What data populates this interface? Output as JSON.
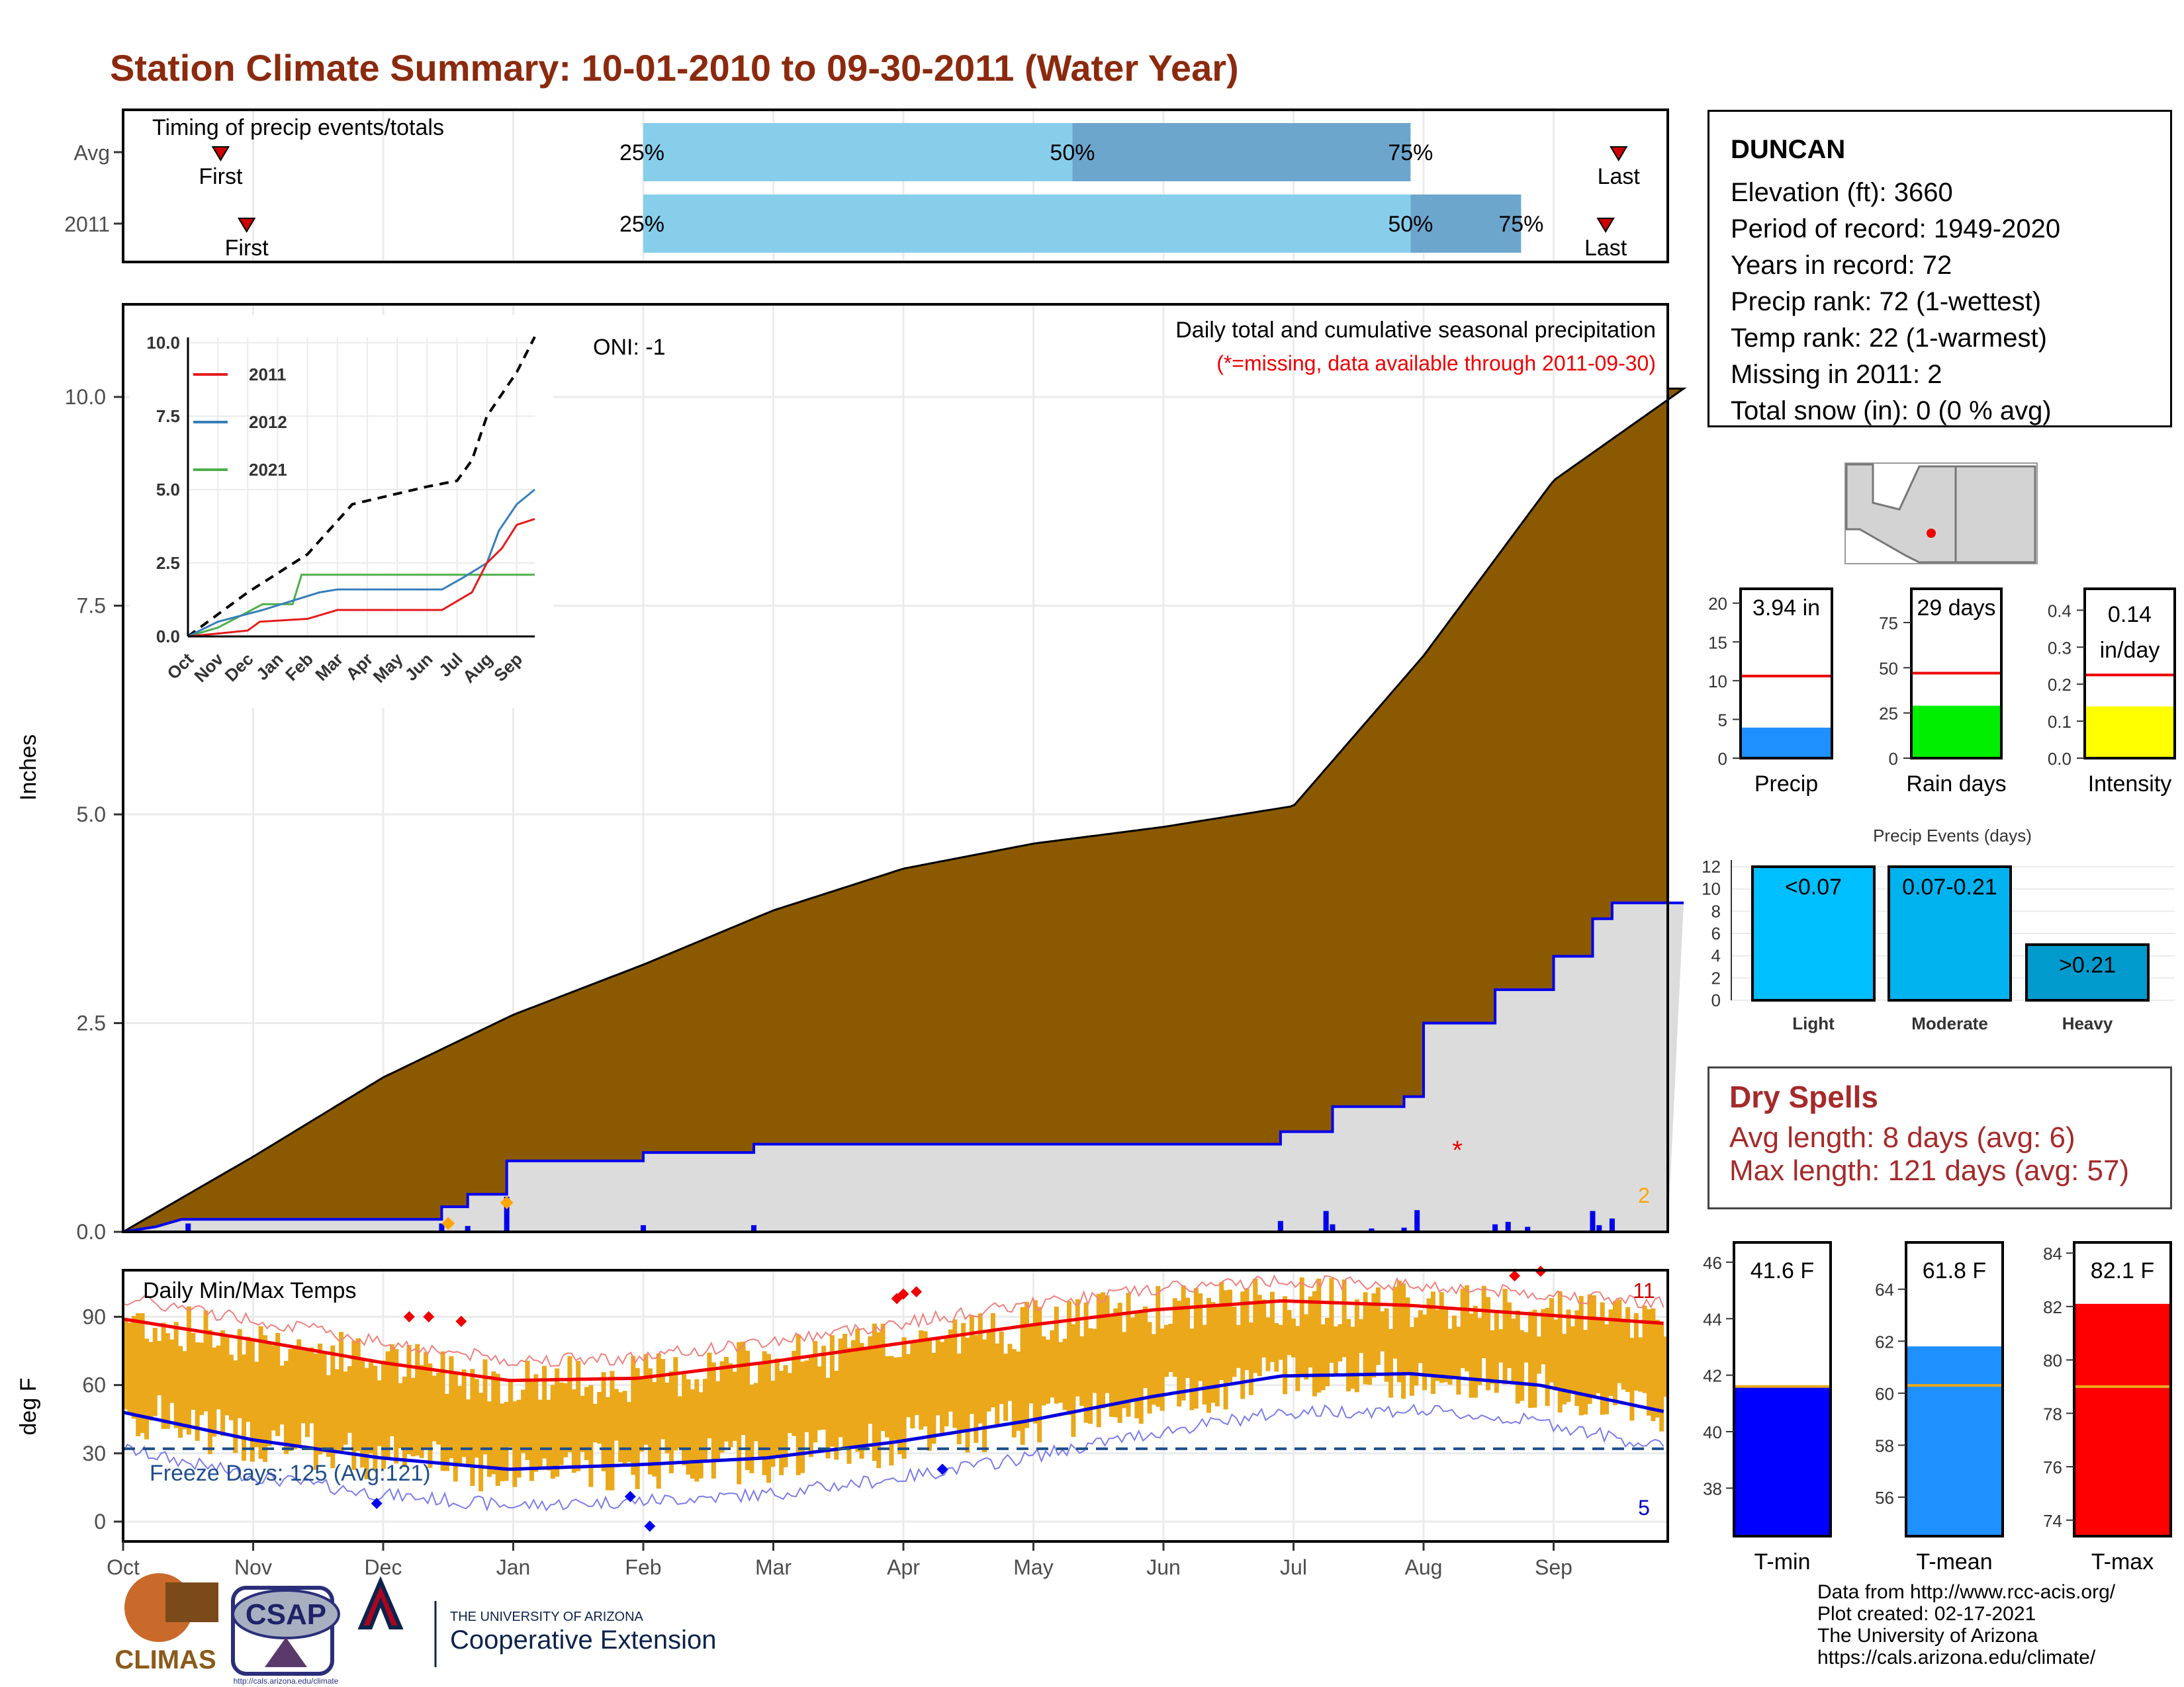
{
  "title": "Station Climate Summary: 10-01-2010 to 09-30-2011 (Water Year)",
  "timing_panel": {
    "title": "Timing of precip events/totals",
    "rows": [
      {
        "label": "Avg",
        "first_label": "First",
        "last_label": "Last",
        "first_month": 0.75,
        "last_month": 11.5,
        "p25": 4.0,
        "p50": 7.3,
        "p75": 9.9,
        "p25_label": "25%",
        "p50_label": "50%",
        "p75_label": "75%"
      },
      {
        "label": "2011",
        "first_label": "First",
        "last_label": "Last",
        "first_month": 0.95,
        "last_month": 11.4,
        "p25": 4.0,
        "p50": 9.9,
        "p75": 10.75,
        "p25_label": "25%",
        "p50_label": "50%",
        "p75_label": "75%"
      }
    ],
    "colors": {
      "light": "#87CEEB",
      "dark": "#6CA6CD",
      "marker": "#CC0000"
    }
  },
  "precip_panel": {
    "ylabel": "Inches",
    "yticks": [
      "0.0",
      "2.5",
      "5.0",
      "7.5",
      "10.0"
    ],
    "subtitle": "Daily total and cumulative seasonal precipitation",
    "note": "(*=missing, data available through 2011-09-30)",
    "oni": "ONI: -1",
    "missing_count": "2",
    "colors": {
      "avg_fill": "#8B5A00",
      "year_fill": "#DCDCDC",
      "year_line": "#0000EE",
      "daily_bars": "#0000EE",
      "note": "#EE0000",
      "missing": "#FFA500"
    }
  },
  "inset": {
    "yticks": [
      "0.0",
      "2.5",
      "5.0",
      "7.5",
      "10.0"
    ],
    "xticks": [
      "Oct",
      "Nov",
      "Dec",
      "Jan",
      "Feb",
      "Mar",
      "Apr",
      "May",
      "Jun",
      "Jul",
      "Aug",
      "Sep"
    ],
    "legend": [
      {
        "name": "2011",
        "color": "#E41A1C"
      },
      {
        "name": "2012",
        "color": "#377EB8"
      },
      {
        "name": "2021",
        "color": "#4DAF4A"
      }
    ]
  },
  "temp_panel": {
    "ylabel": "deg F",
    "title": "Daily Min/Max Temps",
    "yticks": [
      "0",
      "30",
      "60",
      "90"
    ],
    "freeze_label": "Freeze Days: 125 (Avg:121)",
    "max_count": "11",
    "min_count": "5",
    "colors": {
      "bars": "#EAA81A",
      "max_avg": "#EE0000",
      "min_avg": "#0000DD",
      "freeze": "#1F4E8C"
    }
  },
  "xaxis_months": [
    "Oct",
    "Nov",
    "Dec",
    "Jan",
    "Feb",
    "Mar",
    "Apr",
    "May",
    "Jun",
    "Jul",
    "Aug",
    "Sep"
  ],
  "station_info": {
    "name": "DUNCAN",
    "lines": [
      "Elevation (ft): 3660",
      "Period of record: 1949-2020",
      "Years in record: 72",
      "Precip rank: 72 (1-wettest)",
      "Temp rank: 22 (1-warmest)",
      "Missing in 2011: 2",
      "Total snow (in): 0 (0 % avg)"
    ]
  },
  "summary_bars": [
    {
      "label": "Precip",
      "value_label": "3.94 in",
      "value": 3.94,
      "avg": 10.6,
      "max": 21,
      "ticks": [
        "0",
        "5",
        "10",
        "15",
        "20"
      ],
      "color": "#1E90FF"
    },
    {
      "label": "Rain days",
      "value_label": "29 days",
      "value": 29,
      "avg": 47,
      "max": 90,
      "ticks": [
        "0",
        "25",
        "50",
        "75"
      ],
      "color": "#00EE00"
    },
    {
      "label": "Intensity",
      "value_label": "0.14 in/day",
      "value": 0.14,
      "avg": 0.225,
      "max": 0.44,
      "ticks": [
        "0.0",
        "0.1",
        "0.2",
        "0.3",
        "0.4"
      ],
      "color": "#FFFF00"
    }
  ],
  "precip_events": {
    "title": "Precip Events (days)",
    "yticks": [
      "0",
      "2",
      "4",
      "6",
      "8",
      "10",
      "12"
    ],
    "categories": [
      "Light",
      "Moderate",
      "Heavy"
    ],
    "labels": [
      "<0.07",
      "0.07-0.21",
      ">0.21"
    ],
    "values": [
      12,
      12,
      5
    ],
    "colors": [
      "#00BFFF",
      "#00B2EE",
      "#009ACD"
    ]
  },
  "dry_spells": {
    "title": "Dry Spells",
    "avg_line": "Avg length: 8 days (avg: 6)",
    "max_line": "Max length: 121 days (avg: 57)"
  },
  "temp_bars": [
    {
      "label": "T-min",
      "value_label": "41.6 F",
      "value": 41.6,
      "avg": 41.6,
      "min": 36.3,
      "max": 46.7,
      "ticks": [
        "38",
        "40",
        "42",
        "44",
        "46"
      ],
      "color": "#0000FF"
    },
    {
      "label": "T-mean",
      "value_label": "61.8 F",
      "value": 61.8,
      "avg": 60.3,
      "min": 54.5,
      "max": 65.8,
      "ticks": [
        "56",
        "58",
        "60",
        "62",
        "64"
      ],
      "color": "#1E90FF"
    },
    {
      "label": "T-max",
      "value_label": "82.1 F",
      "value": 82.1,
      "avg": 79.0,
      "min": 73.4,
      "max": 84.4,
      "ticks": [
        "74",
        "76",
        "78",
        "80",
        "82",
        "84"
      ],
      "color": "#FF0000"
    }
  ],
  "credits": [
    "Data from http://www.rcc-acis.org/",
    "Plot created: 02-17-2021",
    "The University of Arizona",
    "https://cals.arizona.edu/climate/"
  ],
  "logos": {
    "climas": "CLIMAS",
    "csap": "CSAP",
    "csap_url": "http://cals.arizona.edu/climate",
    "ua_line1": "THE UNIVERSITY OF ARIZONA",
    "ua_line2": "Cooperative Extension"
  },
  "chart_data": [
    {
      "type": "area",
      "title": "Daily total and cumulative seasonal precipitation",
      "ylabel": "Inches",
      "x": [
        "Oct",
        "Nov",
        "Dec",
        "Jan",
        "Feb",
        "Mar",
        "Apr",
        "May",
        "Jun",
        "Jul",
        "Aug",
        "Sep",
        "Oct"
      ],
      "ylim": [
        0,
        11
      ],
      "series": [
        {
          "name": "",
          "values": [
            0.0,
            0.9,
            1.85,
            2.6,
            3.2,
            3.85,
            4.35,
            4.65,
            4.85,
            5.1,
            6.9,
            9.0,
            10.1
          ]
        },
        {
          "name": "",
          "values": [
            0.0,
            0.15,
            0.15,
            0.85,
            0.85,
            0.95,
            1.05,
            1.05,
            1.05,
            1.05,
            2.5,
            3.5,
            3.94
          ]
        }
      ]
    },
    {
      "type": "bar",
      "title": "Daily Min/Max Temps",
      "ylabel": "deg F",
      "x": [
        "Oct",
        "Nov",
        "Dec",
        "Jan",
        "Feb",
        "Mar",
        "Apr",
        "May",
        "Jun",
        "Jul",
        "Aug",
        "Sep",
        "Oct"
      ],
      "ylim": [
        -5,
        112
      ],
      "series": [
        {
          "name": "",
          "values": [
            89,
            80,
            70,
            62,
            63,
            70,
            78,
            86,
            93,
            97,
            95,
            91,
            87
          ]
        },
        {
          "name": "",
          "values": [
            48,
            36,
            28,
            23,
            25,
            28,
            35,
            44,
            55,
            64,
            65,
            60,
            48
          ]
        }
      ]
    }
  ]
}
